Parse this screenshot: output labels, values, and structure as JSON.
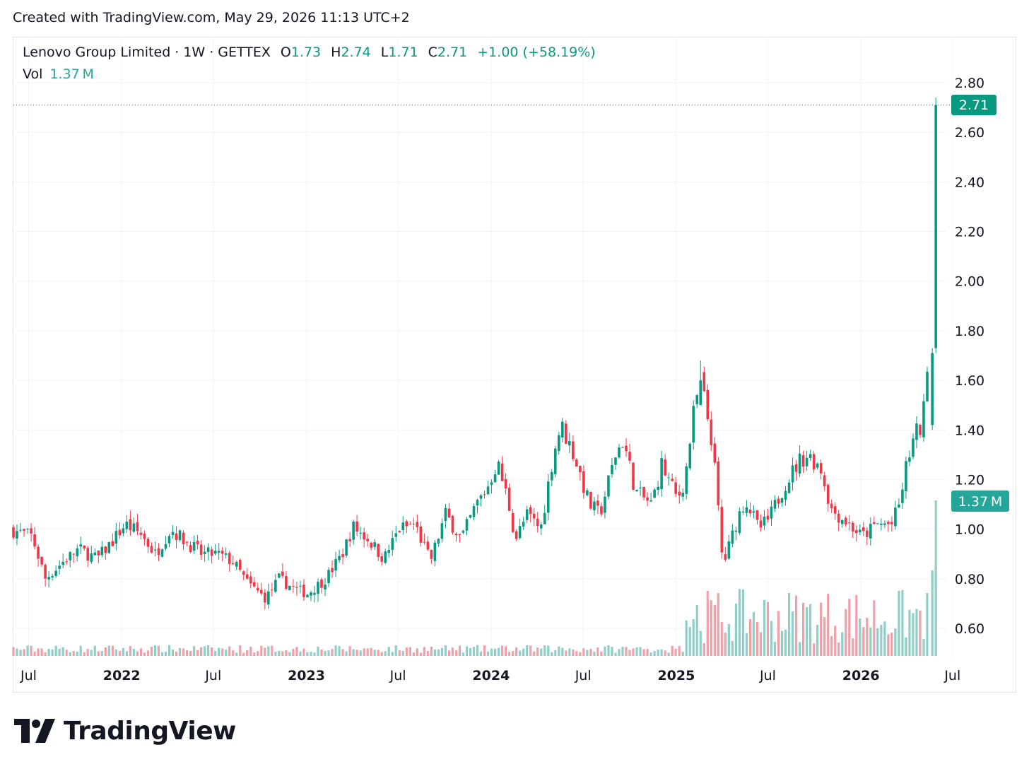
{
  "header": {
    "created_note": "Created with TradingView.com, May 29, 2026 11:13 UTC+2"
  },
  "legend": {
    "symbol": "Lenovo Group Limited",
    "interval": "1W",
    "exchange": "GETTEX",
    "open_label": "O",
    "open": "1.73",
    "high_label": "H",
    "high": "2.74",
    "low_label": "L",
    "low": "1.71",
    "close_label": "C",
    "close": "2.71",
    "change": "+1.00 (+58.19%)",
    "vol_label": "Vol",
    "vol_value": "1.37 M"
  },
  "price_tag": "2.71",
  "volume_tag": "1.37 M",
  "colors": {
    "up": "#089981",
    "down": "#f23645",
    "vol_up": "#8fcfc8",
    "vol_down": "#f0a0a8",
    "grid": "#f0f3fa",
    "text": "#131722"
  },
  "logo": {
    "icon": "tradingview-logo-icon",
    "text": "TradingView"
  },
  "chart_data": {
    "type": "candlestick",
    "interval": "1W",
    "x_tick_labels": [
      "Jul",
      "2022",
      "Jul",
      "2023",
      "Jul",
      "2024",
      "Jul",
      "2025",
      "Jul",
      "2026",
      "Jul"
    ],
    "y_tick_labels": [
      "0.60",
      "0.80",
      "1.00",
      "1.20",
      "1.40",
      "1.60",
      "1.80",
      "2.00",
      "2.20",
      "2.40",
      "2.60",
      "2.80"
    ],
    "ylim": [
      0.49,
      2.84
    ],
    "last_close": 2.71,
    "approx_close_path": [
      [
        "2021-06-01",
        1.0
      ],
      [
        "2021-07-15",
        0.97
      ],
      [
        "2021-08-10",
        0.8
      ],
      [
        "2021-09-15",
        0.87
      ],
      [
        "2021-10-15",
        0.92
      ],
      [
        "2021-11-20",
        0.88
      ],
      [
        "2021-12-20",
        0.95
      ],
      [
        "2022-01-15",
        1.02
      ],
      [
        "2022-02-15",
        0.98
      ],
      [
        "2022-03-15",
        0.9
      ],
      [
        "2022-04-15",
        1.0
      ],
      [
        "2022-05-15",
        0.95
      ],
      [
        "2022-06-15",
        0.9
      ],
      [
        "2022-07-15",
        0.9
      ],
      [
        "2022-08-15",
        0.87
      ],
      [
        "2022-09-15",
        0.78
      ],
      [
        "2022-10-20",
        0.72
      ],
      [
        "2022-11-15",
        0.8
      ],
      [
        "2022-12-15",
        0.76
      ],
      [
        "2023-01-10",
        0.74
      ],
      [
        "2023-02-15",
        0.8
      ],
      [
        "2023-03-20",
        0.9
      ],
      [
        "2023-04-10",
        1.01
      ],
      [
        "2023-05-10",
        0.96
      ],
      [
        "2023-06-10",
        0.88
      ],
      [
        "2023-07-10",
        1.0
      ],
      [
        "2023-08-10",
        1.02
      ],
      [
        "2023-09-10",
        0.87
      ],
      [
        "2023-10-10",
        1.06
      ],
      [
        "2023-11-10",
        0.96
      ],
      [
        "2023-12-10",
        1.1
      ],
      [
        "2024-01-01",
        1.17
      ],
      [
        "2024-01-20",
        1.27
      ],
      [
        "2024-02-10",
        1.12
      ],
      [
        "2024-02-25",
        0.96
      ],
      [
        "2024-03-20",
        1.06
      ],
      [
        "2024-04-15",
        1.0
      ],
      [
        "2024-05-10",
        1.3
      ],
      [
        "2024-05-25",
        1.42
      ],
      [
        "2024-06-20",
        1.3
      ],
      [
        "2024-07-20",
        1.1
      ],
      [
        "2024-08-10",
        1.06
      ],
      [
        "2024-09-10",
        1.3
      ],
      [
        "2024-09-25",
        1.36
      ],
      [
        "2024-10-20",
        1.15
      ],
      [
        "2024-11-20",
        1.1
      ],
      [
        "2024-12-10",
        1.26
      ],
      [
        "2025-01-10",
        1.12
      ],
      [
        "2025-01-25",
        1.2
      ],
      [
        "2025-02-10",
        1.45
      ],
      [
        "2025-02-25",
        1.6
      ],
      [
        "2025-03-20",
        1.35
      ],
      [
        "2025-04-01",
        1.08
      ],
      [
        "2025-04-10",
        0.85
      ],
      [
        "2025-05-10",
        1.05
      ],
      [
        "2025-05-25",
        1.12
      ],
      [
        "2025-06-20",
        1.0
      ],
      [
        "2025-07-10",
        1.04
      ],
      [
        "2025-08-10",
        1.18
      ],
      [
        "2025-09-10",
        1.28
      ],
      [
        "2025-09-25",
        1.3
      ],
      [
        "2025-10-20",
        1.25
      ],
      [
        "2025-11-10",
        1.08
      ],
      [
        "2025-12-10",
        1.03
      ],
      [
        "2026-01-10",
        0.97
      ],
      [
        "2026-02-10",
        1.02
      ],
      [
        "2026-03-10",
        1.02
      ],
      [
        "2026-03-25",
        1.1
      ],
      [
        "2026-04-10",
        1.28
      ],
      [
        "2026-04-25",
        1.38
      ],
      [
        "2026-05-10",
        1.42
      ],
      [
        "2026-05-20",
        1.71
      ],
      [
        "2026-05-29",
        2.71
      ]
    ],
    "highlighted_candles": [
      {
        "date": "2025-02-15",
        "high": 1.68,
        "note": "spike"
      },
      {
        "date": "2026-05-22",
        "open": 1.42,
        "high": 1.73,
        "low": 1.4,
        "close": 1.71
      },
      {
        "date": "2026-05-29",
        "open": 1.73,
        "high": 2.74,
        "low": 1.71,
        "close": 2.71
      }
    ],
    "volume_last": "1.37 M"
  }
}
